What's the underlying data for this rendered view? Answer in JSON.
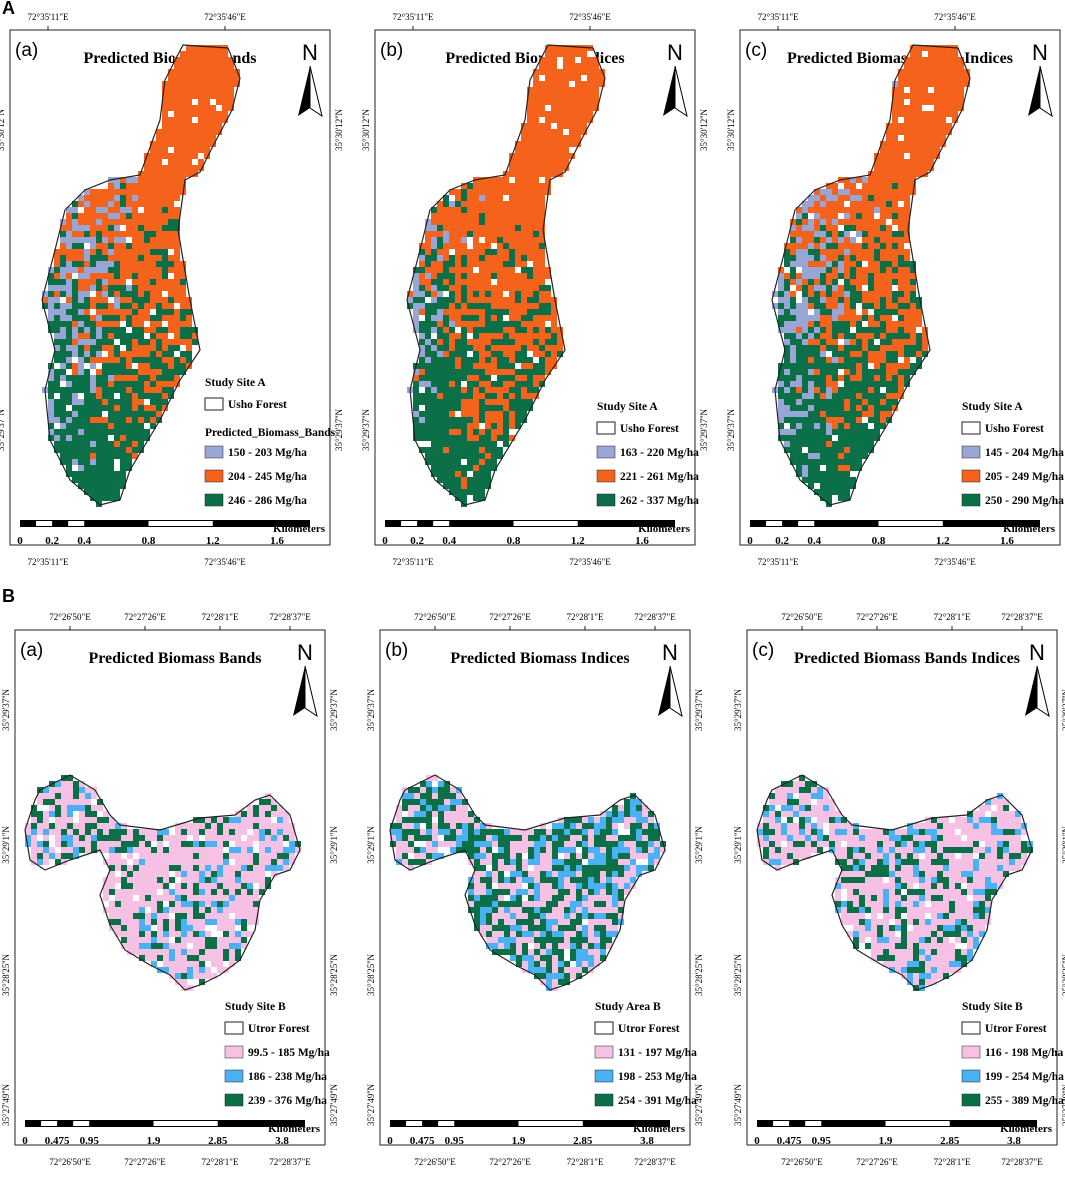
{
  "sections": [
    {
      "label": "A",
      "top_lon": [
        "72°35'11\"E",
        "72°35'46\"E"
      ],
      "bottom_lon": [
        "72°35'11\"E",
        "72°35'46\"E"
      ],
      "lat": [
        "35°30'12''N",
        "35°29'37''N"
      ],
      "scale": [
        "0",
        "0.2",
        "0.4",
        "0.8",
        "1.2",
        "1.6"
      ],
      "scale_unit": "Kilometers",
      "panels": [
        {
          "letter": "(a)",
          "title": "Predicted Biomass Bands",
          "north": "N",
          "legend_title": "Study Site A",
          "area": "Usho Forest",
          "group": "Predicted_Biomass_Bands",
          "classes": [
            {
              "label": "150 - 203 Mg/ha",
              "color": "#98a6d6"
            },
            {
              "label": "204 - 245 Mg/ha",
              "color": "#f4621c"
            },
            {
              "label": "246 - 286 Mg/ha",
              "color": "#0b7048"
            }
          ]
        },
        {
          "letter": "(b)",
          "title": "Predicted Biomass Indices",
          "north": "N",
          "legend_title": "Study Site A",
          "area": "Usho Forest",
          "classes": [
            {
              "label": "163 - 220 Mg/ha",
              "color": "#98a6d6"
            },
            {
              "label": "221 - 261 Mg/ha",
              "color": "#f4621c"
            },
            {
              "label": "262 - 337 Mg/ha",
              "color": "#0b7048"
            }
          ]
        },
        {
          "letter": "(c)",
          "title": "Predicted Biomass Bands Indices",
          "north": "N",
          "legend_title": "Study Site A",
          "area": "Usho Forest",
          "classes": [
            {
              "label": "145 - 204 Mg/ha",
              "color": "#98a6d6"
            },
            {
              "label": "205 - 249 Mg/ha",
              "color": "#f4621c"
            },
            {
              "label": "250 - 290 Mg/ha",
              "color": "#0b7048"
            }
          ]
        }
      ]
    },
    {
      "label": "B",
      "top_lon": [
        "72°26'50\"E",
        "72°27'26\"E",
        "72°28'1\"E",
        "72°28'37\"E"
      ],
      "bottom_lon": [
        "72°26'50\"E",
        "72°27'26\"E",
        "72°28'1\"E",
        "72°28'37\"E"
      ],
      "lat": [
        "35°29'37''N",
        "35°29'1''N",
        "35°28'25''N",
        "35°27'49''N"
      ],
      "scale": [
        "0",
        "0.475",
        "0.95",
        "1.9",
        "2.85",
        "3.8"
      ],
      "scale_unit": "Kilometers",
      "panels": [
        {
          "letter": "(a)",
          "title": "Predicted Biomass Bands",
          "north": "N",
          "legend_title": "Study Site B",
          "area": "Utror Forest",
          "classes": [
            {
              "label": "99.5 - 185 Mg/ha",
              "color": "#f7c1e6"
            },
            {
              "label": "186 - 238 Mg/ha",
              "color": "#4ab2f2"
            },
            {
              "label": "239 - 376 Mg/ha",
              "color": "#0b7048"
            }
          ]
        },
        {
          "letter": "(b)",
          "title": "Predicted Biomass Indices",
          "north": "N",
          "legend_title": "Study Area B",
          "area": "Utror Forest",
          "classes": [
            {
              "label": "131 - 197 Mg/ha",
              "color": "#f7c1e6"
            },
            {
              "label": "198 - 253 Mg/ha",
              "color": "#4ab2f2"
            },
            {
              "label": "254 - 391 Mg/ha",
              "color": "#0b7048"
            }
          ]
        },
        {
          "letter": "(c)",
          "title": "Predicted Biomass Bands Indices",
          "north": "N",
          "legend_title": "Study Site B",
          "area": "Utror Forest",
          "classes": [
            {
              "label": "116 - 198 Mg/ha",
              "color": "#f7c1e6"
            },
            {
              "label": "199 - 254 Mg/ha",
              "color": "#4ab2f2"
            },
            {
              "label": "255 - 389 Mg/ha",
              "color": "#0b7048"
            }
          ]
        }
      ]
    }
  ]
}
